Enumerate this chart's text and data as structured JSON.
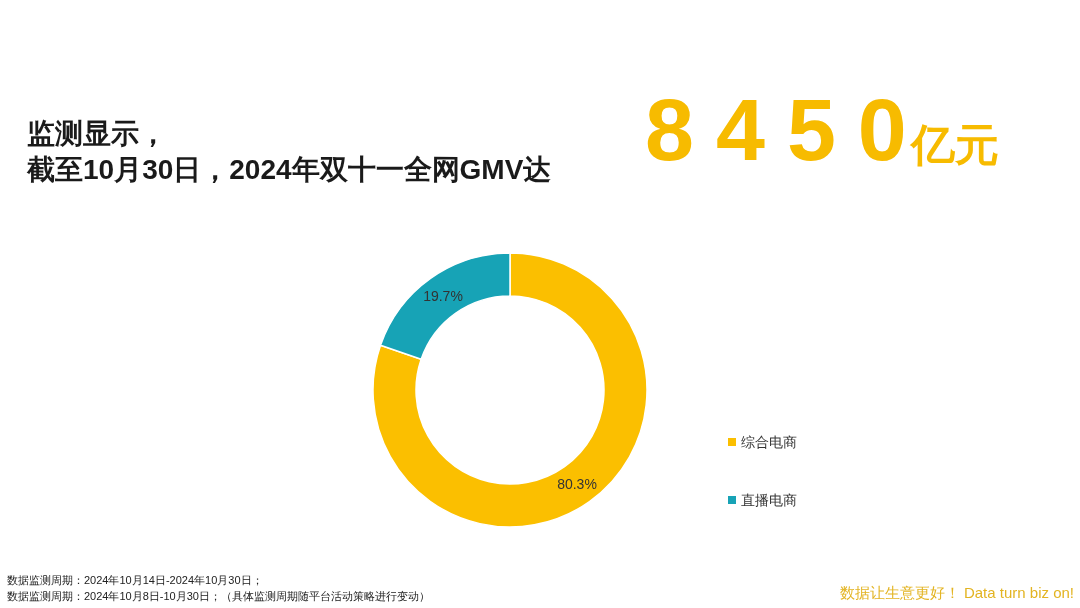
{
  "chart_data": {
    "type": "donut",
    "title": "监测显示，",
    "subtitle": "截至10月30日，2024年双十一全网GMV达",
    "categories": [
      "综合电商",
      "直播电商"
    ],
    "values": [
      80.3,
      19.7
    ],
    "colors": [
      "#fbbf00",
      "#17a3b6"
    ],
    "value_labels": [
      "80.3%",
      "19.7%"
    ],
    "legend": "bottom right",
    "annotations": [
      "8450亿元",
      "数据监测周期：2024年10月14日-2024年10月30日；",
      "数据监测周期：2024年10月8日-10月30日；（具体监测周期随平台活动策略进行变动）",
      "数据让生意更好！ Data turn biz on!"
    ]
  }
}
